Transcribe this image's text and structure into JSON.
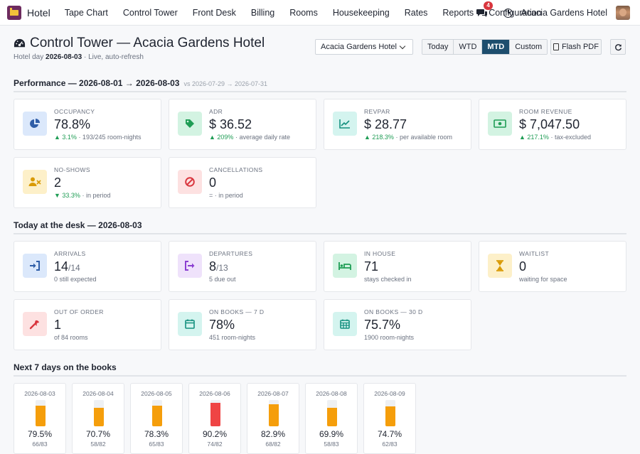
{
  "navbar": {
    "app_name": "Hotel",
    "menu": [
      "Tape Chart",
      "Control Tower",
      "Front Desk",
      "Billing",
      "Rooms",
      "Housekeeping",
      "Rates",
      "Reports",
      "Configuration"
    ],
    "chat_count": "4",
    "company": "Acacia Gardens Hotel"
  },
  "header": {
    "title": "Control Tower — Acacia Gardens Hotel",
    "hotel_day_label": "Hotel day",
    "hotel_day": "2026-08-03",
    "live_text": "· Live, auto-refresh"
  },
  "controls": {
    "hotel_select": "Acacia Gardens Hotel",
    "periods": [
      {
        "label": "Today",
        "active": false
      },
      {
        "label": "WTD",
        "active": false
      },
      {
        "label": "MTD",
        "active": true
      },
      {
        "label": "Custom",
        "active": false
      }
    ],
    "flash_pdf": "Flash PDF"
  },
  "performance": {
    "title": "Performance — 2026-08-01 → 2026-08-03",
    "vs": "vs 2026-07-29 → 2026-07-31",
    "cards": [
      {
        "label": "OCCUPANCY",
        "value": "78.8%",
        "delta": "▲ 3.1%",
        "note": "· 193/245 room-nights"
      },
      {
        "label": "ADR",
        "value": "$ 36.52",
        "delta": "▲ 209%",
        "note": "· average daily rate"
      },
      {
        "label": "REVPAR",
        "value": "$ 28.77",
        "delta": "▲ 218.3%",
        "note": "· per available room"
      },
      {
        "label": "ROOM REVENUE",
        "value": "$ 7,047.50",
        "delta": "▲ 217.1%",
        "note": "· tax-excluded"
      },
      {
        "label": "NO-SHOWS",
        "value": "2",
        "delta": "▼ 33.3%",
        "note": "· in period"
      },
      {
        "label": "CANCELLATIONS",
        "value": "0",
        "delta": "",
        "note": "= · in period"
      }
    ]
  },
  "today": {
    "title": "Today at the desk — 2026-08-03",
    "cards": [
      {
        "label": "ARRIVALS",
        "value": "14",
        "suffix": "/14",
        "note": "0 still expected"
      },
      {
        "label": "DEPARTURES",
        "value": "8",
        "suffix": "/13",
        "note": "5 due out"
      },
      {
        "label": "IN HOUSE",
        "value": "71",
        "suffix": "",
        "note": "stays checked in"
      },
      {
        "label": "WAITLIST",
        "value": "0",
        "suffix": "",
        "note": "waiting for space"
      },
      {
        "label": "OUT OF ORDER",
        "value": "1",
        "suffix": "",
        "note": "of 84 rooms"
      },
      {
        "label": "ON BOOKS — 7 D",
        "value": "78%",
        "suffix": "",
        "note": "451 room-nights"
      },
      {
        "label": "ON BOOKS — 30 D",
        "value": "75.7%",
        "suffix": "",
        "note": "1900 room-nights"
      }
    ]
  },
  "next7": {
    "title": "Next 7 days on the books",
    "days": [
      {
        "date": "2026-08-03",
        "pct": "79.5%",
        "fill": 0.795,
        "rn": "66/83",
        "color": "#f59e0b"
      },
      {
        "date": "2026-08-04",
        "pct": "70.7%",
        "fill": 0.707,
        "rn": "58/82",
        "color": "#f59e0b"
      },
      {
        "date": "2026-08-05",
        "pct": "78.3%",
        "fill": 0.783,
        "rn": "65/83",
        "color": "#f59e0b"
      },
      {
        "date": "2026-08-06",
        "pct": "90.2%",
        "fill": 0.902,
        "rn": "74/82",
        "color": "#ef4444"
      },
      {
        "date": "2026-08-07",
        "pct": "82.9%",
        "fill": 0.829,
        "rn": "68/82",
        "color": "#f59e0b"
      },
      {
        "date": "2026-08-08",
        "pct": "69.9%",
        "fill": 0.699,
        "rn": "58/83",
        "color": "#f59e0b"
      },
      {
        "date": "2026-08-09",
        "pct": "74.7%",
        "fill": 0.747,
        "rn": "62/83",
        "color": "#f59e0b"
      }
    ]
  }
}
